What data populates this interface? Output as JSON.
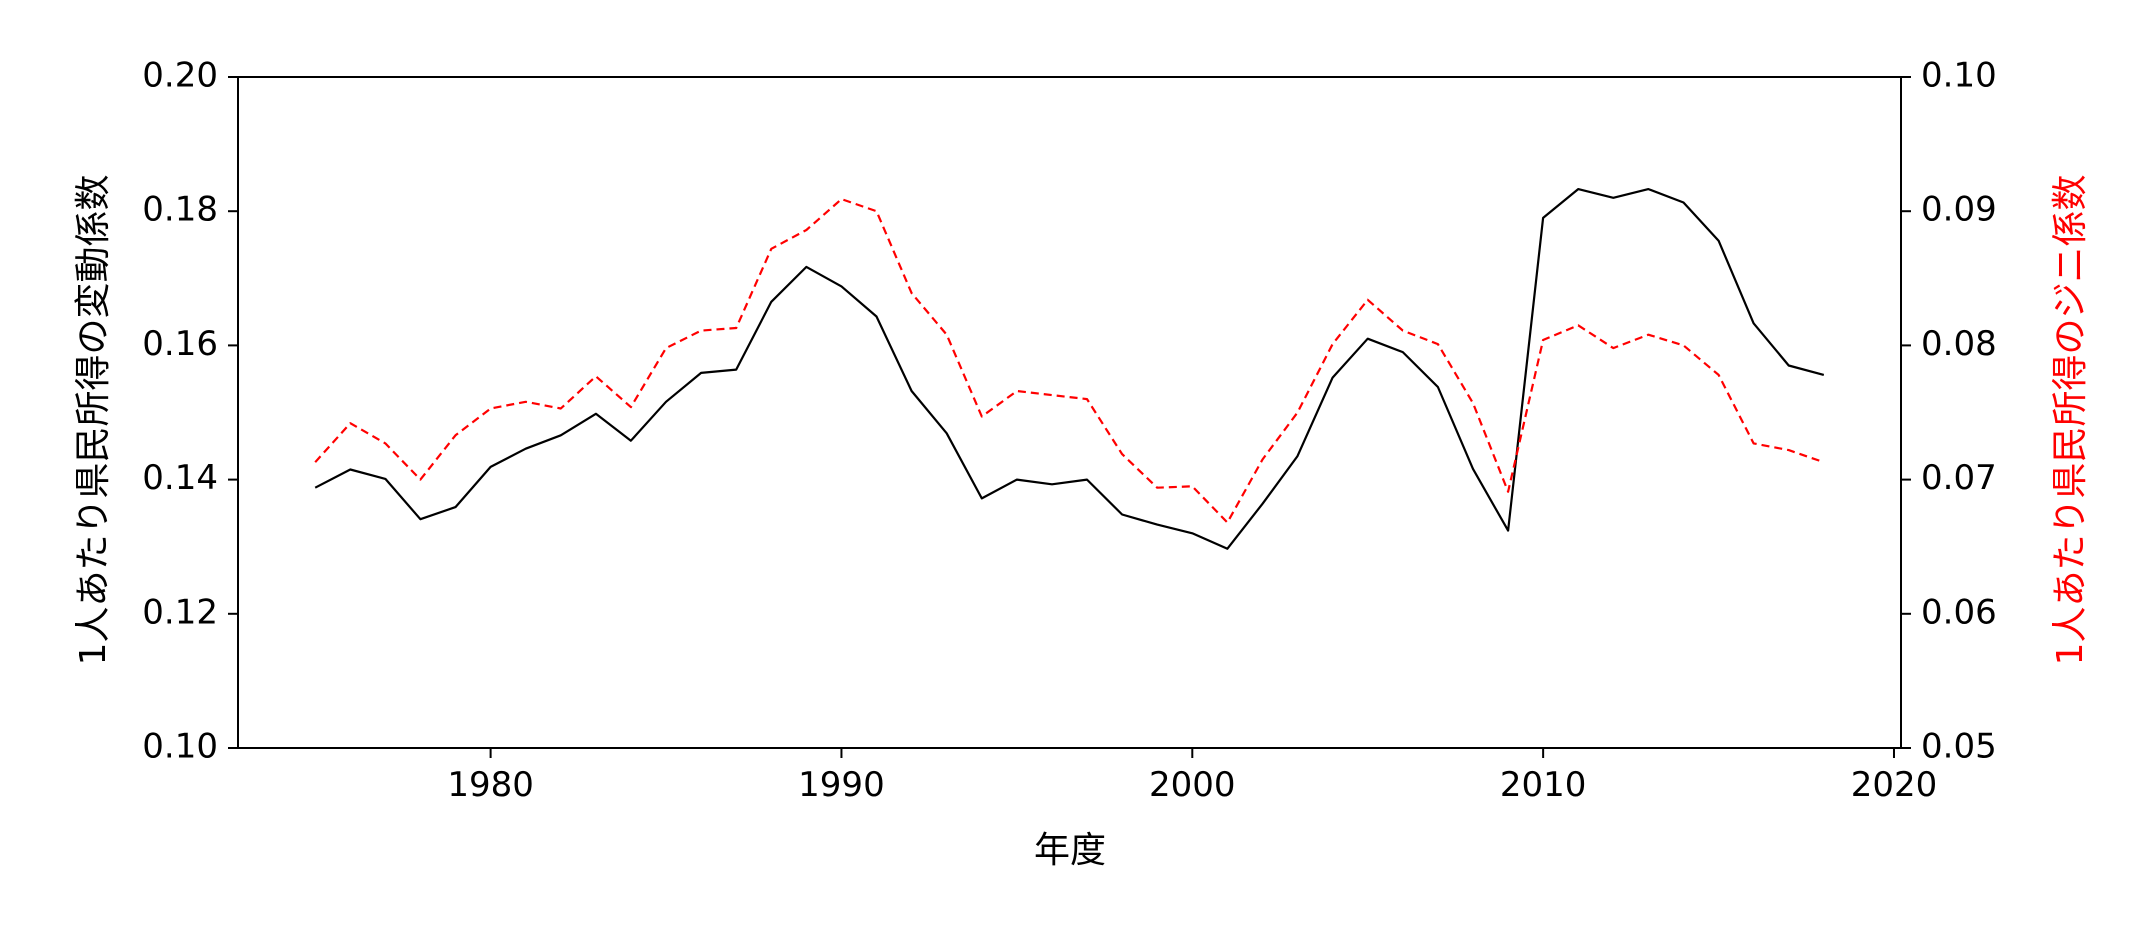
{
  "chart_data": {
    "type": "line",
    "xlabel": "年度",
    "ylabel_left": "1人あたり県民所得の変動係数",
    "ylabel_right": "1人あたり県民所得のジニ係数",
    "xlim": [
      1972.8,
      2020.2
    ],
    "ylim_left": [
      0.1,
      0.2
    ],
    "ylim_right": [
      0.05,
      0.1
    ],
    "x_ticks": [
      1980,
      1990,
      2000,
      2010,
      2020
    ],
    "y_ticks_left": [
      "0.10",
      "0.12",
      "0.14",
      "0.16",
      "0.18",
      "0.20"
    ],
    "y_ticks_right": [
      "0.05",
      "0.06",
      "0.07",
      "0.08",
      "0.09",
      "0.10"
    ],
    "grid": false,
    "legend": false,
    "x": [
      1975,
      1976,
      1977,
      1978,
      1979,
      1980,
      1981,
      1982,
      1983,
      1984,
      1985,
      1986,
      1987,
      1988,
      1989,
      1990,
      1991,
      1992,
      1993,
      1994,
      1995,
      1996,
      1997,
      1998,
      1999,
      2000,
      2001,
      2002,
      2003,
      2004,
      2005,
      2006,
      2007,
      2008,
      2009,
      2010,
      2011,
      2012,
      2013,
      2014,
      2015,
      2016,
      2017,
      2018
    ],
    "series": [
      {
        "axis": "left",
        "color": "#000000",
        "style": "solid",
        "values": [
          0.1388,
          0.1415,
          0.1401,
          0.1341,
          0.1359,
          0.1419,
          0.1446,
          0.1466,
          0.1498,
          0.1458,
          0.1516,
          0.1559,
          0.1564,
          0.1665,
          0.1717,
          0.1688,
          0.1643,
          0.1532,
          0.1469,
          0.1372,
          0.14,
          0.1393,
          0.14,
          0.1348,
          0.1333,
          0.132,
          0.1297,
          0.1364,
          0.1435,
          0.1552,
          0.161,
          0.159,
          0.1538,
          0.1416,
          0.1324,
          0.179,
          0.1833,
          0.182,
          0.1833,
          0.1813,
          0.1756,
          0.1633,
          0.157,
          0.1556
        ]
      },
      {
        "axis": "right",
        "color": "#ff0000",
        "style": "dashed",
        "values": [
          0.0713,
          0.0742,
          0.0727,
          0.07,
          0.0733,
          0.0753,
          0.0758,
          0.0753,
          0.0777,
          0.0754,
          0.0798,
          0.0811,
          0.0813,
          0.0872,
          0.0886,
          0.0909,
          0.09,
          0.0839,
          0.0808,
          0.0747,
          0.0766,
          0.0763,
          0.076,
          0.0719,
          0.0694,
          0.0695,
          0.0668,
          0.0715,
          0.075,
          0.0801,
          0.0834,
          0.0811,
          0.0801,
          0.0757,
          0.0691,
          0.0804,
          0.0815,
          0.0798,
          0.0808,
          0.08,
          0.0778,
          0.0727,
          0.0722,
          0.0713
        ]
      }
    ]
  }
}
